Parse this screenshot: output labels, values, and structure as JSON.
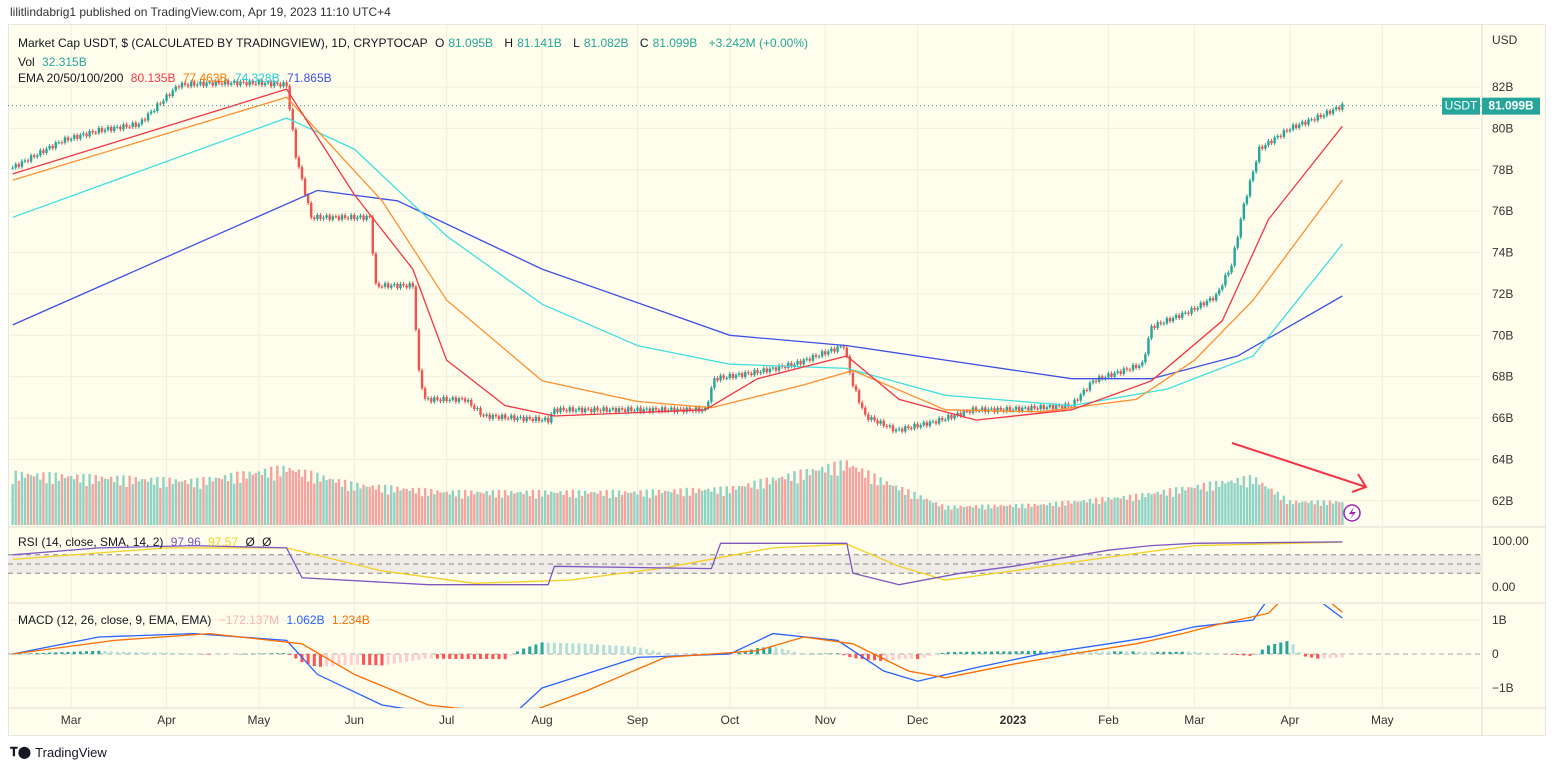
{
  "published": "lilitlindabrig1 published on TradingView.com, Apr 19, 2023 11:10 UTC+4",
  "legend": {
    "symbol": "Market Cap USDT, $ (CALCULATED BY TRADINGVIEW), 1D, CRYPTOCAP",
    "o_label": "O",
    "o": "81.095B",
    "h_label": "H",
    "h": "81.141B",
    "l_label": "L",
    "l": "81.082B",
    "c_label": "C",
    "c": "81.099B",
    "change": "+3.242M (+0.00%)",
    "vol_label": "Vol",
    "vol": "32.315B",
    "ema_label": "EMA 20/50/100/200",
    "ema20": "80.135B",
    "ema50": "77.463B",
    "ema100": "74.328B",
    "ema200": "71.865B",
    "rsi_label": "RSI (14, close, SMA, 14, 2)",
    "rsi": "97.96",
    "rsi_sma": "97.57",
    "rsi_na1": "Ø",
    "rsi_na2": "Ø",
    "macd_label": "MACD (12, 26, close, 9, EMA, EMA)",
    "macd_hist": "−172.137M",
    "macd": "1.062B",
    "macd_signal": "1.234B"
  },
  "price_label": {
    "name": "USDT",
    "value": "81.099B"
  },
  "footer": {
    "brand": "TradingView"
  },
  "colors": {
    "up": "#26a69a",
    "down": "#ef5350",
    "ema20": "#f23645",
    "ema50": "#ff9030",
    "ema100": "#40e0e0",
    "ema200": "#3f51e5",
    "rsi": "#7e57c2",
    "rsi_sma": "#f5d020",
    "macd": "#2962ff",
    "signal": "#ff6d00",
    "annotation": "#f23645"
  },
  "chart_data": {
    "type": "candlestick",
    "currency_label": "USD",
    "price_axis": {
      "ylim": [
        61,
        84.5
      ],
      "ticks": [
        "82B",
        "80B",
        "78B",
        "76B",
        "74B",
        "72B",
        "70B",
        "68B",
        "66B",
        "64B",
        "62B"
      ],
      "tick_values": [
        82,
        80,
        78,
        76,
        74,
        72,
        70,
        68,
        66,
        64,
        62
      ]
    },
    "time_ticks": [
      {
        "label": "Mar",
        "date": "2022-03-01"
      },
      {
        "label": "Apr",
        "date": "2022-04-01"
      },
      {
        "label": "May",
        "date": "2022-05-01"
      },
      {
        "label": "Jun",
        "date": "2022-06-01"
      },
      {
        "label": "Jul",
        "date": "2022-07-01"
      },
      {
        "label": "Aug",
        "date": "2022-08-01"
      },
      {
        "label": "Sep",
        "date": "2022-09-01"
      },
      {
        "label": "Oct",
        "date": "2022-10-01"
      },
      {
        "label": "Nov",
        "date": "2022-11-01"
      },
      {
        "label": "Dec",
        "date": "2022-12-01"
      },
      {
        "label": "2023",
        "date": "2023-01-01"
      },
      {
        "label": "Feb",
        "date": "2023-02-01"
      },
      {
        "label": "Mar",
        "date": "2023-03-01"
      },
      {
        "label": "Apr",
        "date": "2023-04-01"
      },
      {
        "label": "May",
        "date": "2023-05-01"
      }
    ],
    "close": [
      [
        "2022-02-10",
        78.1
      ],
      [
        "2022-02-26",
        79.4
      ],
      [
        "2022-03-10",
        79.9
      ],
      [
        "2022-03-23",
        80.2
      ],
      [
        "2022-03-27",
        80.8
      ],
      [
        "2022-04-05",
        82.1
      ],
      [
        "2022-04-18",
        82.2
      ],
      [
        "2022-05-01",
        82.2
      ],
      [
        "2022-05-10",
        82.1
      ],
      [
        "2022-05-13",
        78.7
      ],
      [
        "2022-05-18",
        75.7
      ],
      [
        "2022-06-06",
        75.7
      ],
      [
        "2022-06-08",
        72.4
      ],
      [
        "2022-06-20",
        72.4
      ],
      [
        "2022-06-22",
        68.2
      ],
      [
        "2022-06-24",
        66.9
      ],
      [
        "2022-07-07",
        66.9
      ],
      [
        "2022-07-13",
        66.1
      ],
      [
        "2022-08-03",
        65.9
      ],
      [
        "2022-08-05",
        66.4
      ],
      [
        "2022-09-23",
        66.4
      ],
      [
        "2022-09-26",
        67.9
      ],
      [
        "2022-10-09",
        68.2
      ],
      [
        "2022-10-22",
        68.6
      ],
      [
        "2022-11-07",
        69.5
      ],
      [
        "2022-11-10",
        67.6
      ],
      [
        "2022-11-14",
        66.1
      ],
      [
        "2022-11-24",
        65.4
      ],
      [
        "2022-12-06",
        65.8
      ],
      [
        "2022-12-19",
        66.4
      ],
      [
        "2022-12-29",
        66.4
      ],
      [
        "2023-01-20",
        66.6
      ],
      [
        "2023-01-27",
        67.8
      ],
      [
        "2023-02-12",
        68.6
      ],
      [
        "2023-02-15",
        70.4
      ],
      [
        "2023-02-28",
        71.2
      ],
      [
        "2023-03-08",
        71.9
      ],
      [
        "2023-03-13",
        73.4
      ],
      [
        "2023-03-17",
        76.3
      ],
      [
        "2023-03-22",
        79.0
      ],
      [
        "2023-04-01",
        80.0
      ],
      [
        "2023-04-11",
        80.6
      ],
      [
        "2023-04-18",
        81.1
      ]
    ],
    "ema20": [
      [
        "2022-02-10",
        77.8
      ],
      [
        "2022-05-10",
        81.9
      ],
      [
        "2022-06-01",
        76.8
      ],
      [
        "2022-06-20",
        73.2
      ],
      [
        "2022-07-01",
        68.8
      ],
      [
        "2022-07-20",
        66.6
      ],
      [
        "2022-08-05",
        66.1
      ],
      [
        "2022-09-23",
        66.4
      ],
      [
        "2022-10-10",
        67.9
      ],
      [
        "2022-11-08",
        69.0
      ],
      [
        "2022-11-25",
        66.9
      ],
      [
        "2022-12-20",
        65.9
      ],
      [
        "2023-01-20",
        66.4
      ],
      [
        "2023-02-15",
        67.8
      ],
      [
        "2023-03-10",
        70.7
      ],
      [
        "2023-03-25",
        75.6
      ],
      [
        "2023-04-18",
        80.1
      ]
    ],
    "ema50": [
      [
        "2022-02-10",
        77.5
      ],
      [
        "2022-05-10",
        81.5
      ],
      [
        "2022-06-10",
        76.5
      ],
      [
        "2022-07-01",
        71.7
      ],
      [
        "2022-08-01",
        67.8
      ],
      [
        "2022-09-01",
        66.8
      ],
      [
        "2022-09-25",
        66.5
      ],
      [
        "2022-10-25",
        67.6
      ],
      [
        "2022-11-10",
        68.3
      ],
      [
        "2022-12-10",
        66.4
      ],
      [
        "2023-01-10",
        66.3
      ],
      [
        "2023-02-10",
        66.9
      ],
      [
        "2023-03-01",
        68.8
      ],
      [
        "2023-03-20",
        71.7
      ],
      [
        "2023-04-18",
        77.5
      ]
    ],
    "ema100": [
      [
        "2022-02-10",
        75.7
      ],
      [
        "2022-05-10",
        80.5
      ],
      [
        "2022-06-01",
        79.0
      ],
      [
        "2022-07-01",
        74.8
      ],
      [
        "2022-08-01",
        71.5
      ],
      [
        "2022-09-01",
        69.5
      ],
      [
        "2022-10-01",
        68.6
      ],
      [
        "2022-11-08",
        68.4
      ],
      [
        "2022-12-10",
        67.1
      ],
      [
        "2023-01-20",
        66.6
      ],
      [
        "2023-02-20",
        67.4
      ],
      [
        "2023-03-20",
        69.0
      ],
      [
        "2023-04-18",
        74.4
      ]
    ],
    "ema200": [
      [
        "2022-02-10",
        70.5
      ],
      [
        "2022-05-20",
        77.0
      ],
      [
        "2022-06-15",
        76.5
      ],
      [
        "2022-08-01",
        73.2
      ],
      [
        "2022-10-01",
        70.0
      ],
      [
        "2022-11-08",
        69.5
      ],
      [
        "2022-12-10",
        68.8
      ],
      [
        "2023-01-20",
        67.9
      ],
      [
        "2023-02-15",
        67.9
      ],
      [
        "2023-03-15",
        69.0
      ],
      [
        "2023-04-18",
        71.9
      ]
    ],
    "volume_B": [
      [
        "2022-02-10",
        70
      ],
      [
        "2022-03-10",
        65
      ],
      [
        "2022-04-10",
        60
      ],
      [
        "2022-05-10",
        78
      ],
      [
        "2022-06-01",
        55
      ],
      [
        "2022-07-01",
        45
      ],
      [
        "2022-08-01",
        45
      ],
      [
        "2022-09-01",
        45
      ],
      [
        "2022-10-01",
        50
      ],
      [
        "2022-11-08",
        85
      ],
      [
        "2022-11-20",
        60
      ],
      [
        "2022-12-10",
        25
      ],
      [
        "2023-01-10",
        28
      ],
      [
        "2023-02-10",
        40
      ],
      [
        "2023-03-20",
        65
      ],
      [
        "2023-04-01",
        32
      ],
      [
        "2023-04-18",
        32
      ]
    ],
    "rsi": {
      "ylim": [
        0,
        100
      ],
      "ticks": [
        "100.00",
        "0.00"
      ],
      "bands": [
        70,
        50,
        30
      ],
      "rsi": [
        [
          "2022-02-10",
          70
        ],
        [
          "2022-03-10",
          85
        ],
        [
          "2022-04-10",
          90
        ],
        [
          "2022-05-10",
          85
        ],
        [
          "2022-05-15",
          20
        ],
        [
          "2022-06-25",
          5
        ],
        [
          "2022-08-03",
          5
        ],
        [
          "2022-08-05",
          45
        ],
        [
          "2022-09-25",
          40
        ],
        [
          "2022-09-28",
          95
        ],
        [
          "2022-11-08",
          95
        ],
        [
          "2022-11-10",
          30
        ],
        [
          "2022-11-25",
          5
        ],
        [
          "2022-12-15",
          30
        ],
        [
          "2023-01-01",
          45
        ],
        [
          "2023-02-01",
          80
        ],
        [
          "2023-02-15",
          90
        ],
        [
          "2023-03-01",
          95
        ],
        [
          "2023-04-18",
          98
        ]
      ],
      "sma": [
        [
          "2022-02-10",
          60
        ],
        [
          "2022-04-01",
          85
        ],
        [
          "2022-05-10",
          85
        ],
        [
          "2022-06-10",
          35
        ],
        [
          "2022-07-10",
          8
        ],
        [
          "2022-08-10",
          15
        ],
        [
          "2022-09-10",
          42
        ],
        [
          "2022-10-15",
          85
        ],
        [
          "2022-11-08",
          93
        ],
        [
          "2022-11-25",
          45
        ],
        [
          "2022-12-10",
          15
        ],
        [
          "2023-01-01",
          35
        ],
        [
          "2023-02-01",
          65
        ],
        [
          "2023-03-01",
          90
        ],
        [
          "2023-04-18",
          97.6
        ]
      ]
    },
    "macd": {
      "ylim": [
        -1.6,
        1.6
      ],
      "ticks": [
        "1B",
        "0",
        "−1B"
      ],
      "tick_values": [
        1,
        0,
        -1
      ],
      "macd": [
        [
          "2022-02-10",
          0
        ],
        [
          "2022-03-10",
          0.5
        ],
        [
          "2022-04-10",
          0.6
        ],
        [
          "2022-05-10",
          0.4
        ],
        [
          "2022-05-20",
          -0.6
        ],
        [
          "2022-06-10",
          -1.5
        ],
        [
          "2022-07-01",
          -1.8
        ],
        [
          "2022-07-20",
          -2.0
        ],
        [
          "2022-08-01",
          -1.0
        ],
        [
          "2022-09-01",
          -0.1
        ],
        [
          "2022-10-01",
          0
        ],
        [
          "2022-10-15",
          0.6
        ],
        [
          "2022-11-05",
          0.4
        ],
        [
          "2022-11-20",
          -0.5
        ],
        [
          "2022-12-01",
          -0.8
        ],
        [
          "2022-12-20",
          -0.4
        ],
        [
          "2023-01-10",
          0
        ],
        [
          "2023-02-01",
          0.3
        ],
        [
          "2023-02-15",
          0.5
        ],
        [
          "2023-03-01",
          0.8
        ],
        [
          "2023-03-20",
          1.0
        ],
        [
          "2023-04-01",
          2.5
        ],
        [
          "2023-04-10",
          1.6
        ],
        [
          "2023-04-18",
          1.06
        ]
      ],
      "signal": [
        [
          "2022-02-10",
          0
        ],
        [
          "2022-03-15",
          0.4
        ],
        [
          "2022-04-15",
          0.6
        ],
        [
          "2022-05-15",
          0.3
        ],
        [
          "2022-06-01",
          -0.6
        ],
        [
          "2022-06-25",
          -1.5
        ],
        [
          "2022-07-25",
          -1.8
        ],
        [
          "2022-08-15",
          -1.1
        ],
        [
          "2022-09-10",
          -0.1
        ],
        [
          "2022-10-10",
          0.1
        ],
        [
          "2022-10-25",
          0.5
        ],
        [
          "2022-11-10",
          0.3
        ],
        [
          "2022-11-28",
          -0.5
        ],
        [
          "2022-12-10",
          -0.7
        ],
        [
          "2023-01-01",
          -0.3
        ],
        [
          "2023-01-20",
          0
        ],
        [
          "2023-02-10",
          0.3
        ],
        [
          "2023-02-25",
          0.6
        ],
        [
          "2023-03-10",
          0.9
        ],
        [
          "2023-03-25",
          1.2
        ],
        [
          "2023-04-05",
          2.2
        ],
        [
          "2023-04-18",
          1.23
        ]
      ]
    }
  }
}
